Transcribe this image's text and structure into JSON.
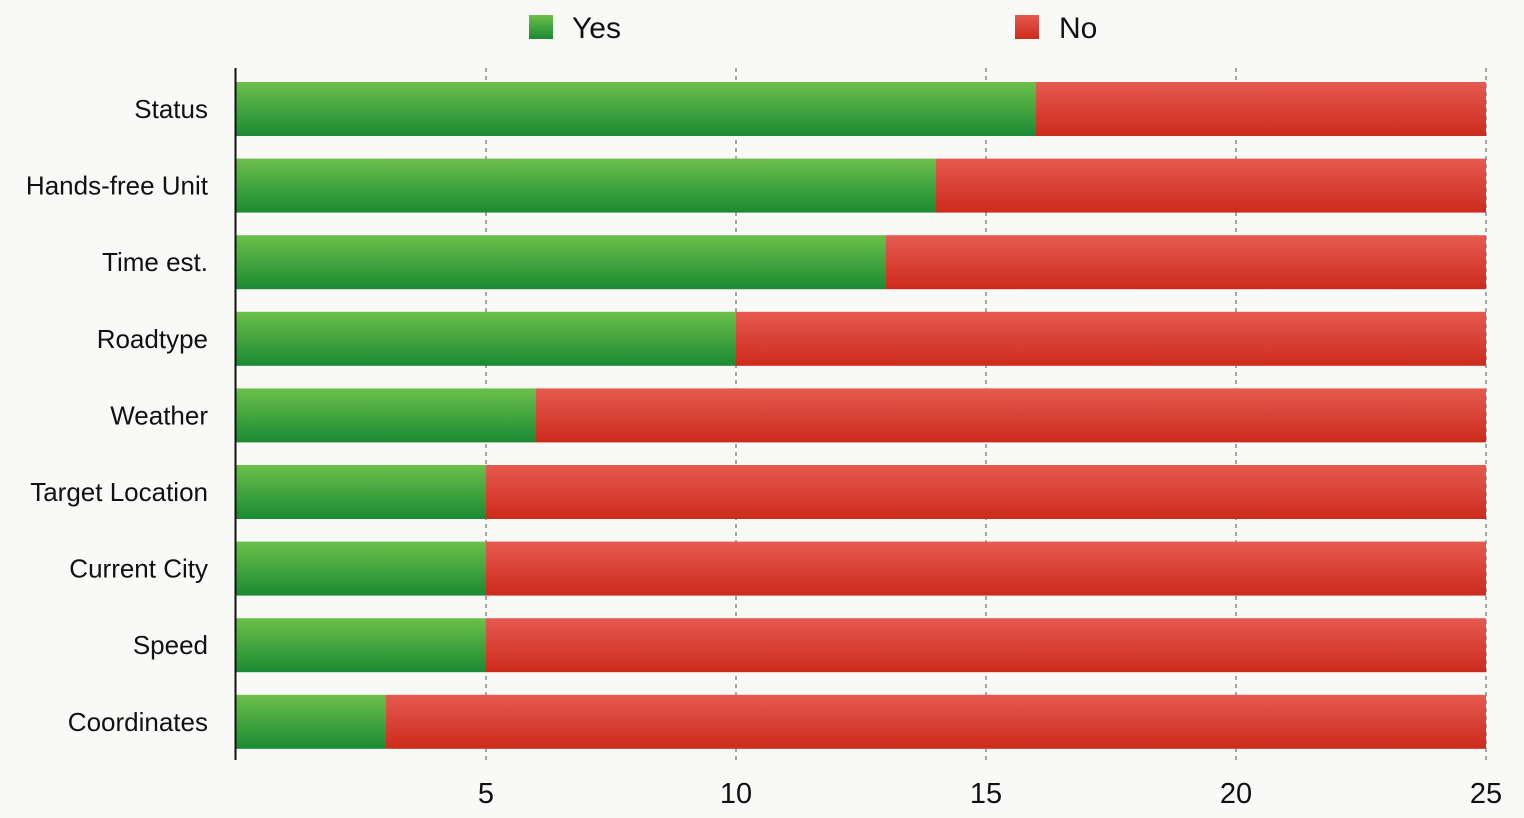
{
  "chart_data": {
    "type": "bar",
    "orientation": "horizontal",
    "stacked": true,
    "categories": [
      "Status",
      "Hands-free Unit",
      "Time est.",
      "Roadtype",
      "Weather",
      "Target Location",
      "Current City",
      "Speed",
      "Coordinates"
    ],
    "series": [
      {
        "name": "Yes",
        "values": [
          16,
          14,
          13,
          10,
          6,
          5,
          5,
          5,
          3
        ],
        "color": "#2e9a3a"
      },
      {
        "name": "No",
        "values": [
          9,
          11,
          12,
          15,
          19,
          20,
          20,
          20,
          22
        ],
        "color": "#d93a2b"
      }
    ],
    "xlim": [
      0,
      25
    ],
    "xticks": [
      5,
      10,
      15,
      20,
      25
    ],
    "grid": "vertical-dashed",
    "legend_position": "top-center"
  }
}
